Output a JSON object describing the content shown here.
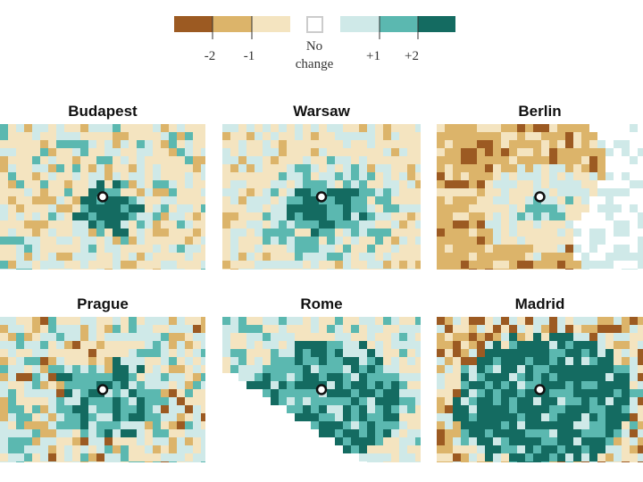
{
  "legend": {
    "labels": [
      "-2",
      "-1",
      "No change",
      "+1",
      "+2"
    ]
  },
  "maps": [
    {
      "city": "Budapest"
    },
    {
      "city": "Warsaw"
    },
    {
      "city": "Berlin"
    },
    {
      "city": "Prague"
    },
    {
      "city": "Rome"
    },
    {
      "city": "Madrid"
    }
  ]
}
